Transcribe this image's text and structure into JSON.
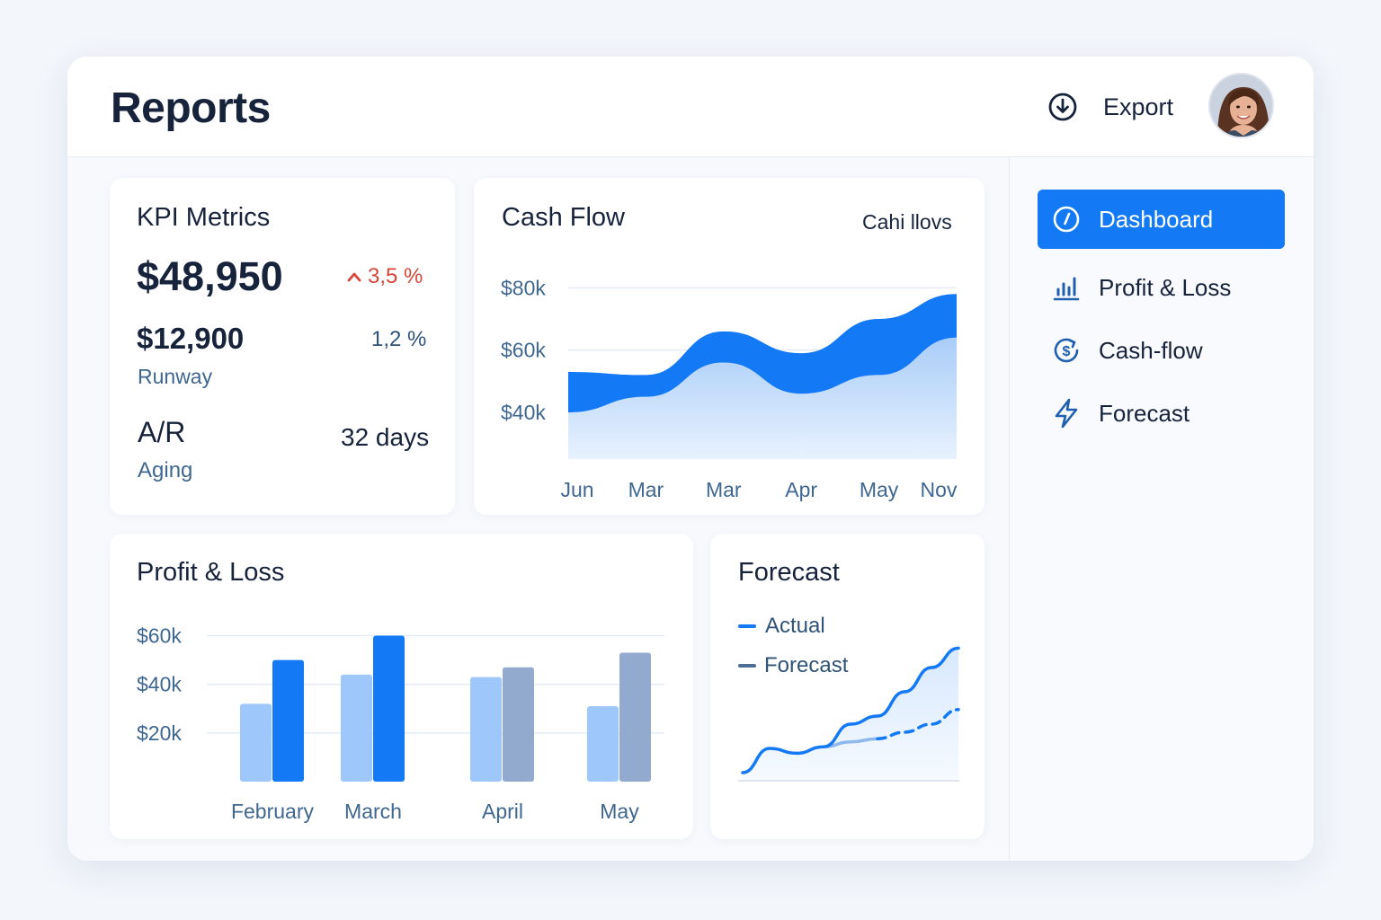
{
  "header": {
    "title": "Reports",
    "export_label": "Export"
  },
  "colors": {
    "accent": "#1479f5",
    "accent_light": "#9ec8fb",
    "muted_bar": "#92aacd",
    "negative": "#d8463a",
    "text_dark": "#16233b",
    "text_muted": "#3f6790"
  },
  "sidebar": {
    "items": [
      {
        "label": "Dashboard",
        "icon": "compass-icon",
        "active": true
      },
      {
        "label": "Profit & Loss",
        "icon": "bar-chart-icon",
        "active": false
      },
      {
        "label": "Cash-flow",
        "icon": "dollar-cycle-icon",
        "active": false
      },
      {
        "label": "Forecast",
        "icon": "lightning-icon",
        "active": false
      }
    ]
  },
  "kpi": {
    "title": "KPI Metrics",
    "primary_value": "$48,950",
    "primary_change": "3,5 %",
    "secondary_value": "$12,900",
    "secondary_change": "1,2 %",
    "secondary_label": "Runway",
    "ar_label": "A/R",
    "ar_sublabel": "Aging",
    "ar_value": "32 days"
  },
  "cash_flow": {
    "title": "Cash Flow",
    "legend_label": "Cahi llovs"
  },
  "profit_loss": {
    "title": "Profit & Loss"
  },
  "forecast": {
    "title": "Forecast",
    "legend": [
      {
        "label": "Actual",
        "color": "#1479f5"
      },
      {
        "label": "Forecast",
        "color": "#4d6f96"
      }
    ]
  },
  "chart_data": [
    {
      "type": "area",
      "title": "Cash Flow",
      "categories": [
        "Jun",
        "Mar",
        "Mar",
        "Apr",
        "May",
        "Nov"
      ],
      "yticks": [
        "$80k",
        "$60k",
        "$40k"
      ],
      "ylim": [
        25,
        85
      ],
      "grid": true,
      "series": [
        {
          "values": [
            53,
            52,
            66,
            59,
            70,
            78
          ]
        },
        {
          "values": [
            40,
            45,
            56,
            46,
            52,
            64
          ]
        }
      ]
    },
    {
      "type": "bar",
      "title": "Profit & Loss",
      "categories": [
        "February",
        "March",
        "April",
        "May"
      ],
      "yticks": [
        "$60k",
        "$40k",
        "$20k"
      ],
      "ylim": [
        0,
        65
      ],
      "grid": true,
      "series": [
        {
          "values": [
            32,
            44,
            43,
            31
          ]
        },
        {
          "values": [
            50,
            60,
            47,
            53
          ]
        }
      ]
    },
    {
      "type": "line",
      "title": "Forecast",
      "x": [
        0,
        1,
        2,
        3,
        4,
        5,
        6,
        7,
        8
      ],
      "series": [
        {
          "name": "Actual",
          "values": [
            5,
            20,
            17,
            21,
            35,
            40,
            55,
            70,
            82
          ]
        },
        {
          "name": "Forecast",
          "values": [
            null,
            null,
            null,
            21,
            24,
            26,
            30,
            35,
            44
          ]
        }
      ],
      "ylim": [
        0,
        100
      ]
    }
  ]
}
